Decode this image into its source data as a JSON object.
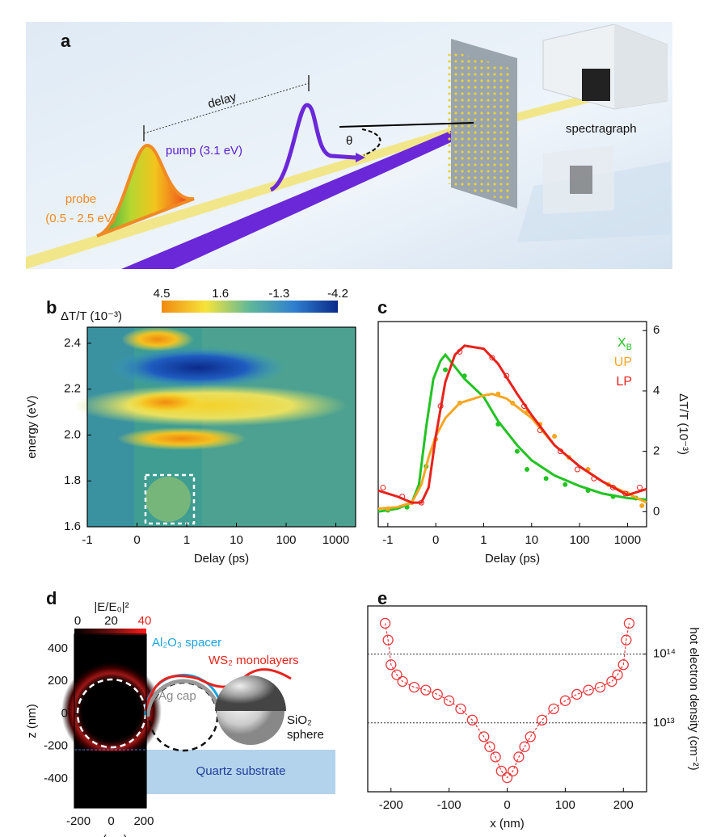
{
  "panel_a": {
    "label": "a",
    "delay": "delay",
    "pump": "pump (3.1 eV)",
    "theta": "θ",
    "probe": [
      "probe",
      "(0.5 - 2.5 eV)"
    ],
    "spectrograph": "spectragraph"
  },
  "chart_data": [
    {
      "type": "heatmap",
      "panel_label": "b",
      "colorbar_label": "ΔT/T (10⁻³)",
      "colorbar_ticks": [
        4.5,
        1.6,
        -1.3,
        -4.2
      ],
      "clim": [
        4.5,
        -4.2
      ],
      "xlabel": "Delay (ps)",
      "ylabel": "energy (eV)",
      "xscale": "linear-log",
      "xlim": [
        -1,
        2500
      ],
      "ylim": [
        1.6,
        2.47
      ],
      "xticks": [
        -1,
        0,
        1,
        10,
        100,
        1000
      ],
      "yticks": [
        1.6,
        1.8,
        {
          "value": 2,
          "label": "2.0"
        },
        2.2,
        2.4
      ]
    },
    {
      "type": "line",
      "panel_label": "c",
      "xlabel": "Delay (ps)",
      "ylabel": "ΔT/T (10⁻³)",
      "xscale": "linear-log",
      "xlim": [
        -1.2,
        2500
      ],
      "ylim": [
        -0.5,
        6.3
      ],
      "xticks": [
        -1,
        0,
        1,
        10,
        100,
        1000
      ],
      "yticks": [
        0,
        2,
        4,
        6
      ],
      "series": [
        {
          "name": "X",
          "name_subscript": "B",
          "color": "#22c322",
          "x": [
            -1.2,
            -0.8,
            -0.5,
            -0.35,
            -0.2,
            -0.05,
            0.1,
            0.2,
            0.35,
            0.6,
            1,
            2,
            5,
            10,
            30,
            100,
            300,
            1000,
            2500
          ],
          "values": [
            0.0,
            0.1,
            0.3,
            0.9,
            2.8,
            4.4,
            5.0,
            5.2,
            4.9,
            4.4,
            3.8,
            3.0,
            2.2,
            1.7,
            1.2,
            0.85,
            0.6,
            0.45,
            0.4
          ],
          "markers_x": [
            -1,
            -0.6,
            -0.2,
            0.2,
            0.6,
            2,
            5,
            8,
            20,
            50,
            150,
            500,
            1500
          ],
          "markers": [
            0.05,
            0.15,
            1.5,
            4.7,
            4.5,
            2.9,
            2.0,
            1.4,
            1.1,
            0.9,
            0.7,
            0.5,
            0.45
          ]
        },
        {
          "name": "UP",
          "color": "#f5a623",
          "x": [
            -1.2,
            -0.8,
            -0.5,
            -0.3,
            -0.15,
            0,
            0.2,
            0.5,
            1,
            1.5,
            3,
            10,
            30,
            100,
            300,
            1000,
            2500
          ],
          "values": [
            0.1,
            0.15,
            0.3,
            0.9,
            1.8,
            2.5,
            3.1,
            3.6,
            3.85,
            3.9,
            3.75,
            3.1,
            2.2,
            1.5,
            1.0,
            0.6,
            0.3
          ],
          "markers_x": [
            -1,
            -0.5,
            0,
            0.5,
            2,
            4,
            8,
            15,
            30,
            60,
            150,
            400,
            1000,
            2000
          ],
          "markers": [
            0.1,
            0.3,
            2.4,
            3.6,
            3.9,
            3.6,
            3.3,
            2.9,
            2.5,
            1.8,
            1.4,
            0.9,
            0.6,
            0.2
          ]
        },
        {
          "name": "LP",
          "color": "#e8221c",
          "x": [
            -1.2,
            -0.8,
            -0.5,
            -0.3,
            -0.15,
            0,
            0.2,
            0.4,
            0.6,
            1,
            2,
            5,
            10,
            30,
            100,
            300,
            1000,
            2500
          ],
          "values": [
            0.7,
            0.5,
            0.3,
            0.3,
            0.8,
            2.5,
            4.3,
            5.2,
            5.5,
            5.4,
            4.9,
            3.9,
            3.2,
            2.2,
            1.5,
            1.0,
            0.55,
            0.75
          ],
          "markers_x": [
            -1.1,
            -0.7,
            -0.3,
            0.1,
            0.5,
            1.5,
            3,
            7,
            15,
            40,
            90,
            200,
            500,
            900,
            1800
          ],
          "markers": [
            0.8,
            0.5,
            0.3,
            3.5,
            5.3,
            5.1,
            4.5,
            3.5,
            2.7,
            2.0,
            1.4,
            1.1,
            0.8,
            0.6,
            0.8
          ]
        }
      ]
    },
    {
      "type": "heatmap",
      "panel_label": "d",
      "colorbar_label": "|E/E₀|²",
      "colorbar_ticks": [
        0,
        20,
        40
      ],
      "clim": [
        0,
        40
      ],
      "xlabel": "x (nm)",
      "ylabel": "z (nm)",
      "xlim": [
        -225,
        215
      ],
      "ylim": [
        -580,
        490
      ],
      "xticks": [
        -200,
        0,
        200
      ],
      "yticks": [
        400,
        200,
        0,
        -200,
        -400
      ],
      "annotations": {
        "spacer": "Al₂O₃ spacer",
        "monolayers": "WS₂ monolayers",
        "cap": "Ag cap",
        "sphere": [
          "SiO₂",
          "sphere"
        ],
        "substrate": "Quartz substrate"
      }
    },
    {
      "type": "scatter",
      "panel_label": "e",
      "xlabel": "x (nm)",
      "ylabel": "hot electron density (cm⁻²)",
      "yscale": "log",
      "grid": true,
      "color": "#e8383d",
      "xlim": [
        -240,
        240
      ],
      "ylim": [
        1000000000000,
        500000000000000
      ],
      "xticks": [
        -200,
        -100,
        0,
        100,
        200
      ],
      "yticks": [
        {
          "value": 10000000000000,
          "label": "10¹³"
        },
        {
          "value": 100000000000000,
          "label": "10¹⁴"
        }
      ],
      "x": [
        -210,
        -205,
        -200,
        -190,
        -180,
        -160,
        -140,
        -120,
        -100,
        -80,
        -60,
        -40,
        -30,
        -20,
        -10,
        0,
        10,
        20,
        30,
        40,
        60,
        80,
        100,
        120,
        140,
        160,
        180,
        190,
        200,
        205,
        210
      ],
      "values": [
        280000000000000,
        160000000000000,
        70000000000000,
        50000000000000,
        40000000000000,
        33000000000000,
        30000000000000,
        26000000000000,
        21000000000000,
        16000000000000,
        11000000000000,
        6300000000000,
        4500000000000,
        3200000000000,
        2000000000000,
        1600000000000,
        2000000000000,
        3200000000000,
        4500000000000,
        6300000000000,
        11000000000000,
        16000000000000,
        21000000000000,
        26000000000000,
        30000000000000,
        33000000000000,
        40000000000000,
        50000000000000,
        70000000000000,
        160000000000000,
        280000000000000
      ]
    }
  ]
}
